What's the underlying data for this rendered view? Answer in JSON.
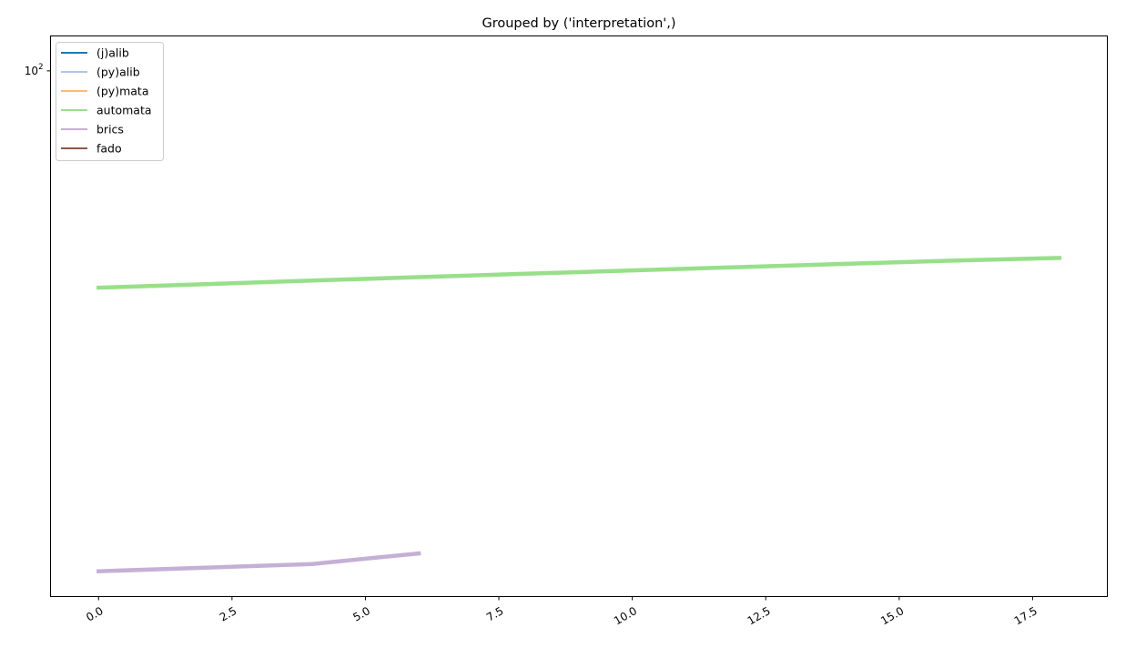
{
  "chart_data": {
    "type": "line",
    "title": "Grouped by ('interpretation',)",
    "xlabel": "",
    "ylabel": "",
    "xlim": [
      -0.9,
      18.9
    ],
    "x_ticks": [
      0.0,
      2.5,
      5.0,
      7.5,
      10.0,
      12.5,
      15.0,
      17.5
    ],
    "x_tick_labels": [
      "0.0",
      "2.5",
      "5.0",
      "7.5",
      "10.0",
      "12.5",
      "15.0",
      "17.5"
    ],
    "y_scale": "log",
    "ylim": [
      12.2,
      115
    ],
    "y_ticks": [
      100
    ],
    "y_tick_labels": [
      {
        "base": "10",
        "exp": "2"
      }
    ],
    "grid": false,
    "legend_position": "upper left",
    "series": [
      {
        "name": "(j)alib",
        "color": "#1f77b4",
        "x": [],
        "y": []
      },
      {
        "name": "(py)alib",
        "color": "#aec7e8",
        "x": [],
        "y": []
      },
      {
        "name": "(py)mata",
        "color": "#ffbb78",
        "x": [],
        "y": []
      },
      {
        "name": "automata",
        "color": "#98df8a",
        "x": [
          0,
          2,
          4,
          6,
          8,
          10,
          12,
          14,
          16,
          18
        ],
        "y": [
          42.0,
          42.6,
          43.2,
          43.8,
          44.4,
          45.0,
          45.6,
          46.2,
          46.8,
          47.3
        ]
      },
      {
        "name": "brics",
        "color": "#c5b0d5",
        "x": [
          0,
          2,
          4,
          6
        ],
        "y": [
          13.5,
          13.7,
          13.9,
          14.5
        ]
      },
      {
        "name": "fado",
        "color": "#8c564b",
        "x": [],
        "y": []
      }
    ]
  }
}
